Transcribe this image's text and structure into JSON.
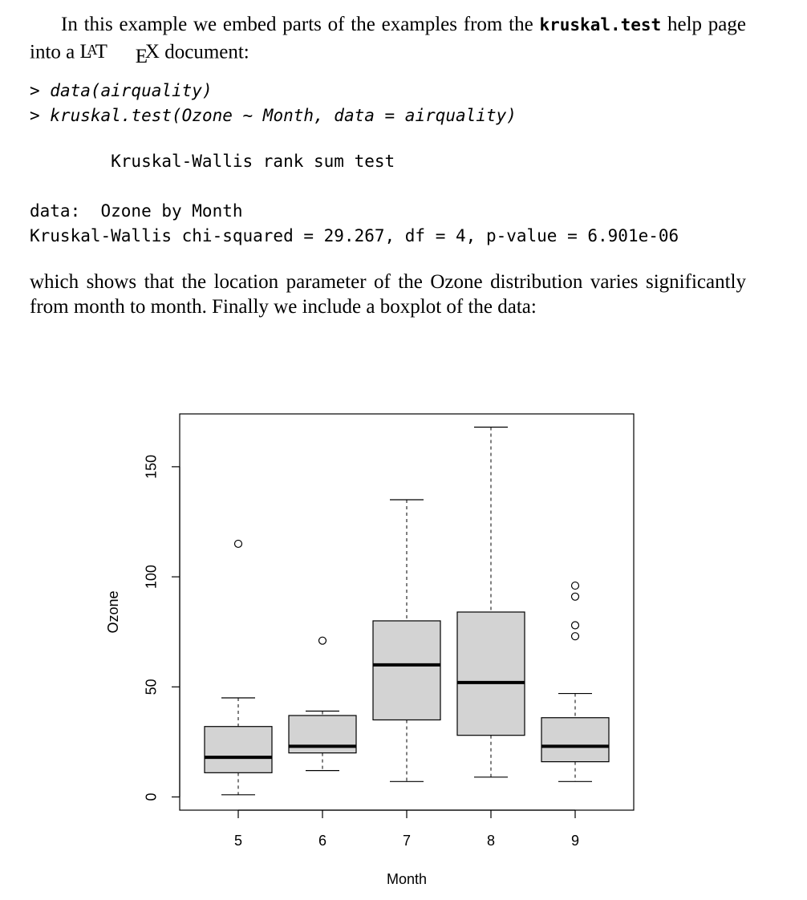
{
  "intro": {
    "text_before": "In this example we embed parts of the examples from the ",
    "function_name": "kruskal.test",
    "text_after_function": " help page into a ",
    "latex_logo": {
      "L": "L",
      "A": "A",
      "T": "T",
      "E": "E",
      "X": "X"
    },
    "text_end": " document:"
  },
  "code": {
    "commands": [
      {
        "prompt": "> ",
        "command": "data(airquality)"
      },
      {
        "prompt": "> ",
        "command": "kruskal.test(Ozone ~ Month, data = airquality)"
      }
    ],
    "output_title": "        Kruskal-Wallis rank sum test",
    "output_data_line": "data:  Ozone by Month",
    "output_stat_line": "Kruskal-Wallis chi-squared = 29.267, df = 4, p-value = 6.901e-06"
  },
  "conclusion": {
    "text": "which shows that the location parameter of the Ozone distribution varies significantly from month to month. Finally we include a boxplot of the data:"
  },
  "chart_data": {
    "type": "boxplot",
    "title": "",
    "xlabel": "Month",
    "ylabel": "Ozone",
    "ylim": [
      -6,
      174
    ],
    "yticks": [
      0,
      50,
      100,
      150
    ],
    "categories": [
      "5",
      "6",
      "7",
      "8",
      "9"
    ],
    "boxes": [
      {
        "category": "5",
        "whisker_low": 1,
        "q1": 11,
        "median": 18,
        "q3": 32,
        "whisker_high": 45,
        "outliers": [
          115
        ]
      },
      {
        "category": "6",
        "whisker_low": 12,
        "q1": 20,
        "median": 23,
        "q3": 37,
        "whisker_high": 39,
        "outliers": [
          71
        ]
      },
      {
        "category": "7",
        "whisker_low": 7,
        "q1": 35,
        "median": 60,
        "q3": 80,
        "whisker_high": 135,
        "outliers": []
      },
      {
        "category": "8",
        "whisker_low": 9,
        "q1": 28,
        "median": 52,
        "q3": 84,
        "whisker_high": 168,
        "outliers": []
      },
      {
        "category": "9",
        "whisker_low": 7,
        "q1": 16,
        "median": 23,
        "q3": 36,
        "whisker_high": 47,
        "outliers": [
          73,
          78,
          91,
          96
        ]
      }
    ],
    "colors": {
      "box_fill": "#d3d3d3",
      "stroke": "#000000"
    }
  }
}
